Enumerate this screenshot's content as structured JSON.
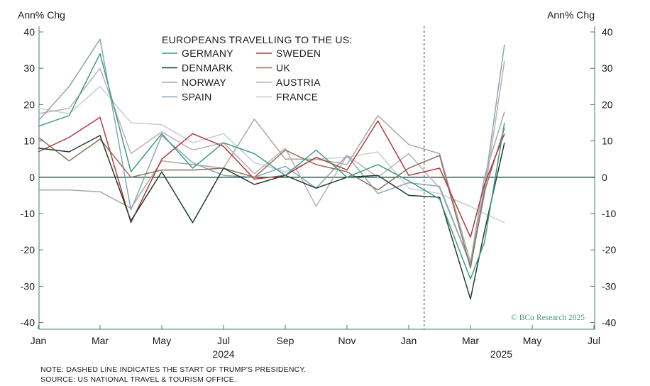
{
  "chart_data": {
    "type": "line",
    "title": "EUROPEANS TRAVELLING TO THE US:",
    "ylabel_left": "Ann% Chg",
    "ylabel_right": "Ann% Chg",
    "ylim": [
      -42,
      42
    ],
    "yticks": [
      40,
      30,
      20,
      10,
      0,
      -10,
      -20,
      -30,
      -40
    ],
    "xlim": [
      0,
      18
    ],
    "xticks": [
      {
        "x": 0,
        "label": "Jan"
      },
      {
        "x": 2,
        "label": "Mar"
      },
      {
        "x": 4,
        "label": "May"
      },
      {
        "x": 6,
        "label": "Jul"
      },
      {
        "x": 8,
        "label": "Sep"
      },
      {
        "x": 10,
        "label": "Nov"
      },
      {
        "x": 12,
        "label": "Jan"
      },
      {
        "x": 14,
        "label": "Mar"
      },
      {
        "x": 16,
        "label": "May"
      },
      {
        "x": 18,
        "label": "Jul"
      }
    ],
    "year_labels": [
      {
        "x": 6,
        "label": "2024"
      },
      {
        "x": 15,
        "label": "2025"
      }
    ],
    "dashed_line_x": 12.5,
    "x": [
      0,
      1,
      2,
      3,
      4,
      5,
      6,
      7,
      8,
      9,
      10,
      11,
      12,
      13,
      14,
      14.45,
      15.1
    ],
    "series": [
      {
        "name": "GERMANY",
        "color": "#3f9c86",
        "values": [
          14,
          17,
          34,
          1.5,
          12,
          2.5,
          9.5,
          6.5,
          0.5,
          7.5,
          0,
          3.5,
          -1,
          -6,
          -28,
          -18,
          15
        ]
      },
      {
        "name": "SWEDEN",
        "color": "#b03a3a",
        "values": [
          7,
          11,
          16.5,
          -12.5,
          5,
          12,
          8.5,
          -0.5,
          0.5,
          5.5,
          2,
          15.5,
          0.5,
          2.5,
          -16.5,
          -2,
          12
        ]
      },
      {
        "name": "DENMARK",
        "color": "#1f3d33",
        "values": [
          8,
          7,
          11.5,
          -12,
          1.5,
          -12.5,
          2.5,
          -2,
          0.5,
          -3,
          0,
          0.5,
          -5,
          -5.5,
          -33.5,
          -15,
          9.5
        ]
      },
      {
        "name": "UK",
        "color": "#8c7060",
        "values": [
          11,
          4.5,
          10.5,
          0,
          2,
          2,
          2.5,
          0,
          7.5,
          3.5,
          1.5,
          -3.5,
          2.5,
          6,
          -25,
          -4,
          13.5
        ]
      },
      {
        "name": "NORWAY",
        "color": "#a8a8a8",
        "values": [
          -3.5,
          -3.5,
          -4,
          -8.5,
          4.5,
          3.5,
          2.5,
          16,
          5,
          5,
          3.5,
          17,
          9,
          6.5,
          -23.5,
          0,
          18
        ]
      },
      {
        "name": "AUSTRIA",
        "color": "#c0aeb0",
        "values": [
          17.5,
          19,
          30,
          6.5,
          12.5,
          7.5,
          9.5,
          1,
          8,
          -8,
          6,
          0,
          6.5,
          -3,
          -24,
          -5,
          32
        ]
      },
      {
        "name": "SPAIN",
        "color": "#8aa6b5",
        "values": [
          15.5,
          25,
          38,
          -9,
          11.5,
          4,
          0.5,
          0,
          3,
          -3,
          6,
          -4.5,
          -1.5,
          -2.5,
          -24,
          -3,
          36.5
        ]
      },
      {
        "name": "FRANCE",
        "color": "#c7ced6",
        "values": [
          19,
          17.5,
          25,
          15,
          14.5,
          9.5,
          12,
          4,
          1.5,
          5,
          5.5,
          7,
          -3,
          -4.5,
          -8,
          -10,
          -12.5
        ]
      }
    ],
    "credit": "© BCα Research 2025",
    "notes": [
      "NOTE: DASHED LINE INDICATES THE START OF TRUMP'S PRESIDENCY.",
      "SOURCE: US NATIONAL TRAVEL & TOURISM OFFICE."
    ]
  }
}
